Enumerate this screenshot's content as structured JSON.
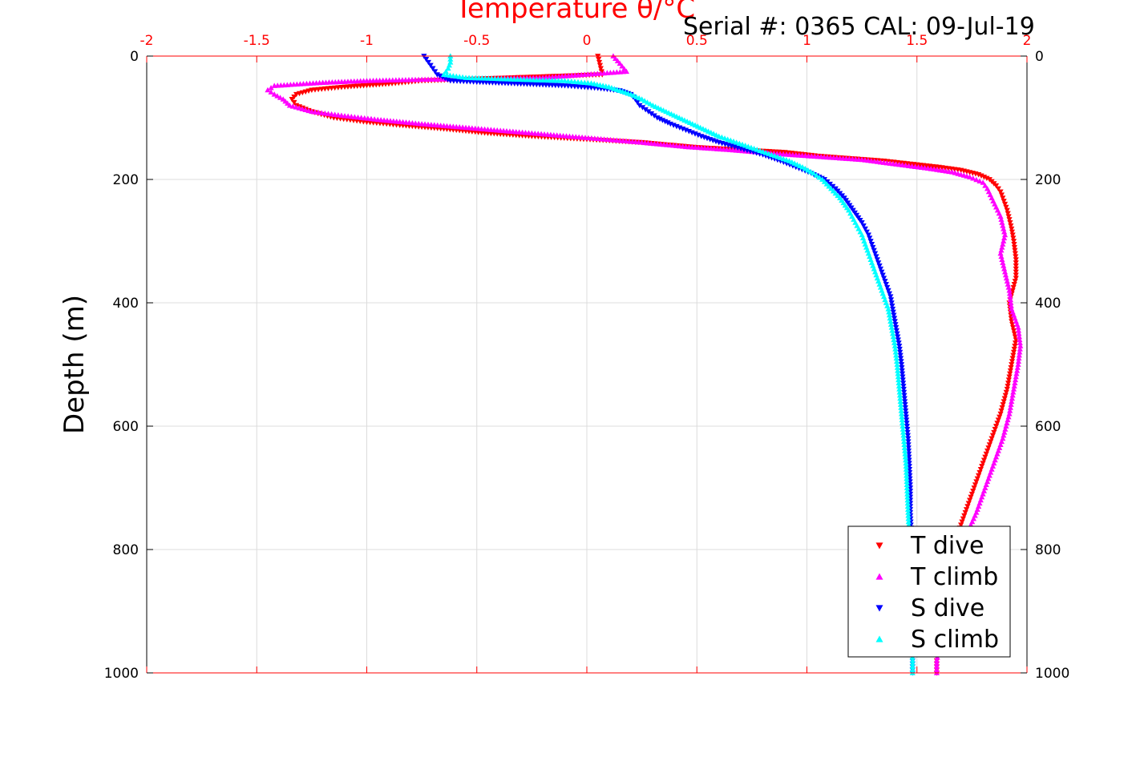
{
  "chart_data": {
    "type": "scatter",
    "title": "Temperature θ/°C",
    "subtitle": "Serial #: 0365  CAL: 09-Jul-19",
    "xlabel": "Temperature θ/°C",
    "ylabel": "Depth (m)",
    "xlim": [
      -2,
      2
    ],
    "ylim": [
      0,
      1000
    ],
    "y_reversed": true,
    "x_axis_position": "top",
    "x_ticks": [
      "-2",
      "-1.5",
      "-1",
      "-0.5",
      "0",
      "0.5",
      "1",
      "1.5",
      "2"
    ],
    "y_ticks": [
      "0",
      "200",
      "400",
      "600",
      "800",
      "1000"
    ],
    "grid": true,
    "legend_position": "bottom-right",
    "colors": {
      "axis_top": "#ff0000",
      "T dive": "#ff0000",
      "T climb": "#ff00ff",
      "S dive": "#0000ff",
      "S climb": "#00ffff"
    },
    "series": [
      {
        "name": "T dive",
        "marker": "triangle-down",
        "color": "#ff0000",
        "points": [
          [
            0.05,
            0
          ],
          [
            0.06,
            15
          ],
          [
            0.07,
            30
          ],
          [
            -0.75,
            40
          ],
          [
            -0.9,
            45
          ],
          [
            -1.1,
            50
          ],
          [
            -1.25,
            55
          ],
          [
            -1.32,
            62
          ],
          [
            -1.34,
            70
          ],
          [
            -1.32,
            80
          ],
          [
            -1.25,
            90
          ],
          [
            -1.15,
            100
          ],
          [
            -1.0,
            107
          ],
          [
            -0.85,
            112
          ],
          [
            -0.65,
            118
          ],
          [
            -0.45,
            125
          ],
          [
            -0.25,
            130
          ],
          [
            0.0,
            135
          ],
          [
            0.25,
            140
          ],
          [
            0.5,
            148
          ],
          [
            0.7,
            152
          ],
          [
            0.9,
            156
          ],
          [
            1.05,
            162
          ],
          [
            1.2,
            166
          ],
          [
            1.35,
            170
          ],
          [
            1.5,
            176
          ],
          [
            1.6,
            180
          ],
          [
            1.7,
            185
          ],
          [
            1.78,
            192
          ],
          [
            1.83,
            200
          ],
          [
            1.86,
            210
          ],
          [
            1.88,
            220
          ],
          [
            1.89,
            230
          ],
          [
            1.91,
            250
          ],
          [
            1.93,
            280
          ],
          [
            1.94,
            300
          ],
          [
            1.95,
            330
          ],
          [
            1.95,
            360
          ],
          [
            1.92,
            400
          ],
          [
            1.93,
            430
          ],
          [
            1.95,
            460
          ],
          [
            1.94,
            480
          ],
          [
            1.93,
            500
          ],
          [
            1.91,
            540
          ],
          [
            1.88,
            580
          ],
          [
            1.84,
            620
          ],
          [
            1.8,
            660
          ],
          [
            1.76,
            700
          ],
          [
            1.72,
            740
          ],
          [
            1.68,
            780
          ],
          [
            1.65,
            820
          ],
          [
            1.63,
            860
          ],
          [
            1.61,
            900
          ],
          [
            1.6,
            940
          ],
          [
            1.59,
            980
          ],
          [
            1.59,
            1000
          ]
        ]
      },
      {
        "name": "T climb",
        "marker": "triangle-up",
        "color": "#ff00ff",
        "points": [
          [
            0.12,
            0
          ],
          [
            0.15,
            12
          ],
          [
            0.18,
            25
          ],
          [
            -0.2,
            35
          ],
          [
            -0.75,
            38
          ],
          [
            -1.0,
            40
          ],
          [
            -1.2,
            43
          ],
          [
            -1.42,
            48
          ],
          [
            -1.45,
            55
          ],
          [
            -1.42,
            62
          ],
          [
            -1.38,
            70
          ],
          [
            -1.35,
            80
          ],
          [
            -1.25,
            90
          ],
          [
            -1.1,
            97
          ],
          [
            -0.95,
            103
          ],
          [
            -0.75,
            110
          ],
          [
            -0.55,
            116
          ],
          [
            -0.35,
            122
          ],
          [
            -0.15,
            128
          ],
          [
            0.05,
            134
          ],
          [
            0.25,
            140
          ],
          [
            0.45,
            147
          ],
          [
            0.65,
            152
          ],
          [
            0.85,
            158
          ],
          [
            1.05,
            163
          ],
          [
            1.25,
            168
          ],
          [
            1.42,
            176
          ],
          [
            1.55,
            182
          ],
          [
            1.66,
            188
          ],
          [
            1.74,
            196
          ],
          [
            1.8,
            205
          ],
          [
            1.82,
            215
          ],
          [
            1.84,
            230
          ],
          [
            1.88,
            260
          ],
          [
            1.9,
            290
          ],
          [
            1.88,
            320
          ],
          [
            1.9,
            350
          ],
          [
            1.92,
            380
          ],
          [
            1.93,
            410
          ],
          [
            1.96,
            440
          ],
          [
            1.97,
            470
          ],
          [
            1.96,
            500
          ],
          [
            1.94,
            540
          ],
          [
            1.92,
            580
          ],
          [
            1.89,
            620
          ],
          [
            1.85,
            660
          ],
          [
            1.81,
            700
          ],
          [
            1.77,
            740
          ],
          [
            1.72,
            780
          ],
          [
            1.69,
            820
          ],
          [
            1.66,
            860
          ],
          [
            1.63,
            900
          ],
          [
            1.61,
            940
          ],
          [
            1.59,
            980
          ],
          [
            1.59,
            1000
          ]
        ]
      },
      {
        "name": "S dive",
        "marker": "triangle-down",
        "color": "#0000ff",
        "points": [
          [
            -0.74,
            0
          ],
          [
            -0.72,
            10
          ],
          [
            -0.7,
            20
          ],
          [
            -0.68,
            30
          ],
          [
            -0.62,
            40
          ],
          [
            -0.5,
            42
          ],
          [
            -0.3,
            45
          ],
          [
            -0.1,
            48
          ],
          [
            0.05,
            52
          ],
          [
            0.15,
            56
          ],
          [
            0.2,
            62
          ],
          [
            0.22,
            70
          ],
          [
            0.24,
            80
          ],
          [
            0.28,
            90
          ],
          [
            0.32,
            100
          ],
          [
            0.38,
            110
          ],
          [
            0.45,
            120
          ],
          [
            0.52,
            130
          ],
          [
            0.6,
            140
          ],
          [
            0.7,
            150
          ],
          [
            0.8,
            160
          ],
          [
            0.88,
            170
          ],
          [
            0.95,
            180
          ],
          [
            1.02,
            190
          ],
          [
            1.08,
            200
          ],
          [
            1.13,
            215
          ],
          [
            1.17,
            230
          ],
          [
            1.21,
            250
          ],
          [
            1.25,
            270
          ],
          [
            1.28,
            290
          ],
          [
            1.3,
            310
          ],
          [
            1.32,
            330
          ],
          [
            1.34,
            350
          ],
          [
            1.36,
            370
          ],
          [
            1.38,
            390
          ],
          [
            1.39,
            410
          ],
          [
            1.4,
            430
          ],
          [
            1.41,
            450
          ],
          [
            1.42,
            470
          ],
          [
            1.43,
            500
          ],
          [
            1.44,
            540
          ],
          [
            1.45,
            580
          ],
          [
            1.46,
            620
          ],
          [
            1.465,
            660
          ],
          [
            1.47,
            700
          ],
          [
            1.47,
            740
          ],
          [
            1.475,
            780
          ],
          [
            1.475,
            820
          ],
          [
            1.48,
            860
          ],
          [
            1.48,
            900
          ],
          [
            1.48,
            940
          ],
          [
            1.48,
            980
          ],
          [
            1.48,
            1000
          ]
        ]
      },
      {
        "name": "S climb",
        "marker": "triangle-up",
        "color": "#00ffff",
        "points": [
          [
            -0.62,
            0
          ],
          [
            -0.62,
            10
          ],
          [
            -0.63,
            20
          ],
          [
            -0.65,
            30
          ],
          [
            -0.55,
            35
          ],
          [
            -0.3,
            38
          ],
          [
            -0.1,
            40
          ],
          [
            0.02,
            44
          ],
          [
            0.1,
            50
          ],
          [
            0.15,
            56
          ],
          [
            0.2,
            62
          ],
          [
            0.25,
            70
          ],
          [
            0.3,
            80
          ],
          [
            0.36,
            90
          ],
          [
            0.42,
            100
          ],
          [
            0.48,
            110
          ],
          [
            0.54,
            120
          ],
          [
            0.6,
            130
          ],
          [
            0.68,
            140
          ],
          [
            0.76,
            150
          ],
          [
            0.84,
            160
          ],
          [
            0.92,
            170
          ],
          [
            0.98,
            180
          ],
          [
            1.03,
            190
          ],
          [
            1.07,
            200
          ],
          [
            1.11,
            215
          ],
          [
            1.15,
            230
          ],
          [
            1.19,
            250
          ],
          [
            1.22,
            270
          ],
          [
            1.25,
            290
          ],
          [
            1.27,
            310
          ],
          [
            1.29,
            330
          ],
          [
            1.31,
            350
          ],
          [
            1.33,
            370
          ],
          [
            1.35,
            390
          ],
          [
            1.37,
            410
          ],
          [
            1.38,
            430
          ],
          [
            1.39,
            450
          ],
          [
            1.4,
            470
          ],
          [
            1.41,
            500
          ],
          [
            1.42,
            540
          ],
          [
            1.43,
            580
          ],
          [
            1.44,
            620
          ],
          [
            1.45,
            660
          ],
          [
            1.455,
            700
          ],
          [
            1.46,
            740
          ],
          [
            1.465,
            780
          ],
          [
            1.47,
            820
          ],
          [
            1.47,
            860
          ],
          [
            1.475,
            900
          ],
          [
            1.475,
            940
          ],
          [
            1.48,
            980
          ],
          [
            1.48,
            1000
          ]
        ]
      }
    ]
  }
}
